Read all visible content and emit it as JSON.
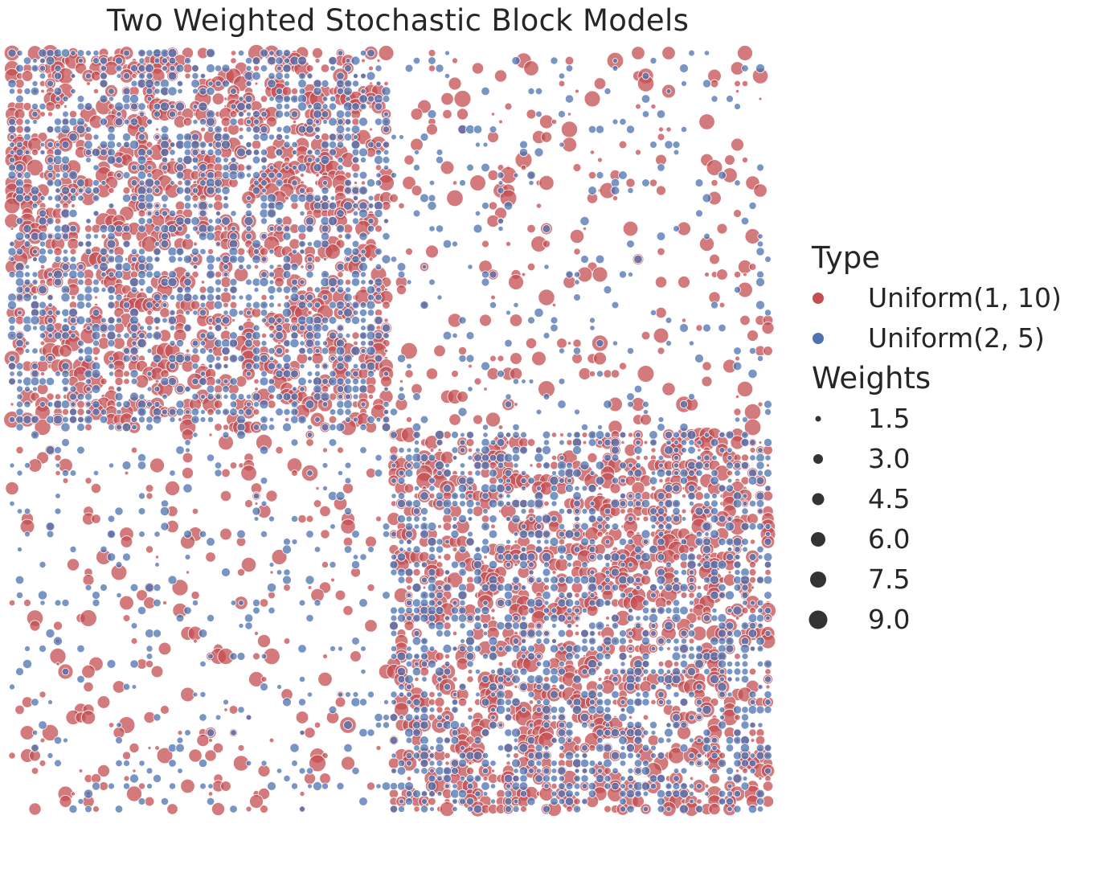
{
  "title": "Two Weighted Stochastic Block Models",
  "legend": {
    "type_title": "Type",
    "types": [
      {
        "label": "Uniform(1, 10)",
        "color": "#c44e52"
      },
      {
        "label": "Uniform(2, 5)",
        "color": "#4c72b0"
      }
    ],
    "weights_title": "Weights",
    "weights": [
      "1.5",
      "3.0",
      "4.5",
      "6.0",
      "7.5",
      "9.0"
    ]
  },
  "chart_data": {
    "type": "scatter",
    "title": "Two Weighted Stochastic Block Models",
    "description_of_encoding": "",
    "matrix_size": 100,
    "blocks": [
      {
        "rows": [
          0,
          50
        ],
        "cols": [
          0,
          50
        ]
      },
      {
        "rows": [
          50,
          100
        ],
        "cols": [
          50,
          100
        ]
      }
    ],
    "series": [
      {
        "name": "Uniform(1, 10)",
        "color": "#c44e52",
        "weight_range": [
          1,
          10
        ],
        "p_within_block": 0.5,
        "p_between_block": 0.1
      },
      {
        "name": "Uniform(2, 5)",
        "color": "#4c72b0",
        "weight_range": [
          2,
          5
        ],
        "p_within_block": 0.5,
        "p_between_block": 0.1
      }
    ],
    "size_legend_values": [
      1.5,
      3.0,
      4.5,
      6.0,
      7.5,
      9.0
    ],
    "grid": false,
    "legend_position": "right"
  }
}
